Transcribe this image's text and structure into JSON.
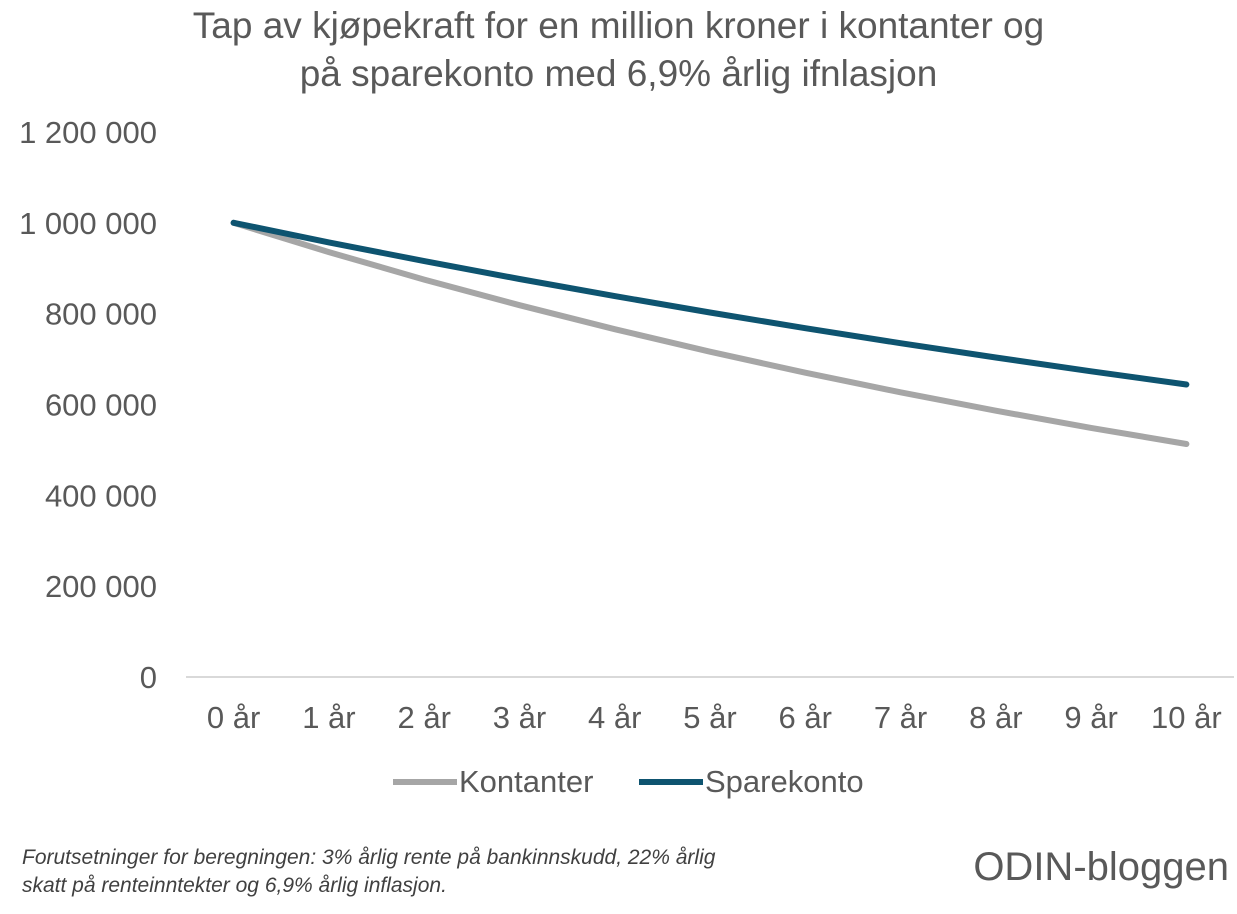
{
  "title": {
    "line1": "Tap av kjøpekraft for en million kroner i kontanter og",
    "line2": "på sparekonto med 6,9% årlig ifnlasjon"
  },
  "chart_data": {
    "type": "line",
    "title": "Tap av kjøpekraft for en million kroner i kontanter og på sparekonto med 6,9% årlig ifnlasjon",
    "categories": [
      "0 år",
      "1 år",
      "2 år",
      "3 år",
      "4 år",
      "5 år",
      "6 år",
      "7 år",
      "8 år",
      "9 år",
      "10 år"
    ],
    "ylim": [
      0,
      1200000
    ],
    "yticks": [
      0,
      200000,
      400000,
      600000,
      800000,
      1000000,
      1200000
    ],
    "ytick_labels": [
      "0",
      "200 000",
      "400 000",
      "600 000",
      "800 000",
      "1 000 000",
      "1 200 000"
    ],
    "grid": false,
    "legend": "bottom",
    "series": [
      {
        "name": "Kontanter",
        "color": "#A6A6A6",
        "values": [
          1000000,
          935500,
          875100,
          818600,
          765800,
          716300,
          670100,
          626800,
          586400,
          548500,
          513100
        ]
      },
      {
        "name": "Sparekonto",
        "color": "#0E5470",
        "values": [
          1000000,
          957000,
          915800,
          876400,
          838700,
          802600,
          768100,
          735000,
          703400,
          673100,
          644100
        ]
      }
    ]
  },
  "legend": {
    "kontanter": "Kontanter",
    "sparekonto": "Sparekonto"
  },
  "footnote": {
    "line1": "Forutsetninger for beregningen: 3% årlig rente på bankinnskudd, 22% årlig",
    "line2": "skatt på renteinntekter og 6,9% årlig inflasjon."
  },
  "brand": "ODIN-bloggen"
}
